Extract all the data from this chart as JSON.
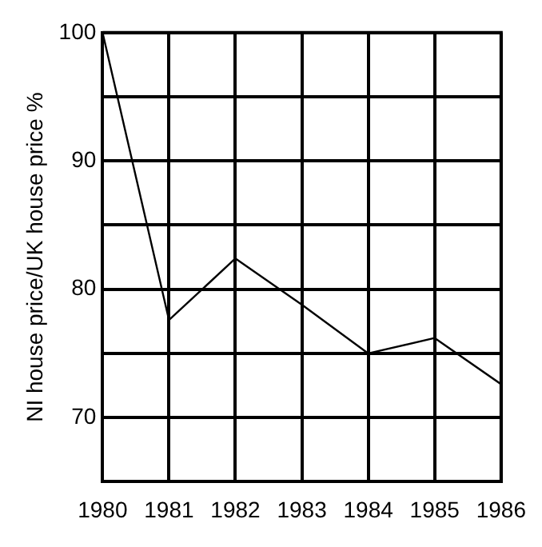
{
  "chart_data": {
    "type": "line",
    "ylabel": "NI house price/UK house price %",
    "x": [
      1980,
      1981,
      1982,
      1983,
      1984,
      1985,
      1986
    ],
    "values": [
      100,
      77.6,
      82.4,
      78.8,
      75.0,
      76.2,
      72.6
    ],
    "color": "#000000",
    "xlim": [
      1980,
      1986
    ],
    "xticks": [
      1980,
      1981,
      1982,
      1983,
      1984,
      1985,
      1986
    ],
    "ylim": [
      65,
      100
    ],
    "yticks": [
      {
        "value": 65,
        "label": null
      },
      70,
      {
        "value": 75,
        "label": null
      },
      80,
      {
        "value": 85,
        "label": null
      },
      90,
      {
        "value": 95,
        "label": null
      },
      100
    ],
    "grid": true,
    "marker": "none",
    "line_style": "solid",
    "legend": false
  }
}
